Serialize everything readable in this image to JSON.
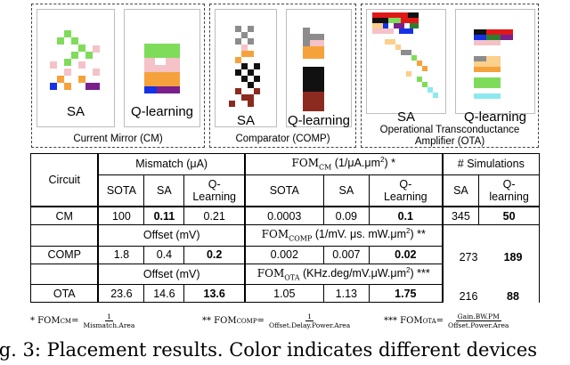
{
  "panels": [
    {
      "caption": "Current Mirror (CM)",
      "left_label": "SA",
      "right_label": "Q-learning"
    },
    {
      "caption": "Comparator (COMP)",
      "left_label": "SA",
      "right_label": "Q-learning"
    },
    {
      "caption_line1": "Operational Transconductance",
      "caption_line2": "Amplifier (OTA)",
      "left_label": "SA",
      "right_label": "Q-learning"
    }
  ],
  "table": {
    "header": {
      "circuit": "Circuit",
      "mismatch_group": "Mismatch (μA)",
      "fom_cm_group": "FOM",
      "fom_cm_sub": "CM",
      "fom_cm_units": " (1/μA.μm",
      "fom_cm_sup": "2",
      "fom_cm_tail": ") *",
      "sims_group": "# Simulations",
      "sota": "SOTA",
      "sa": "SA",
      "ql": "Q-Learning",
      "sota2": "SOTA",
      "sa2": "SA",
      "ql2": "Q-Learning",
      "sa3": "SA",
      "ql3": "Q-learning"
    },
    "cm_row": {
      "name": "CM",
      "v1": "100",
      "v2": "0.11",
      "v3": "0.21",
      "v4": "0.0003",
      "v5": "0.09",
      "v6": "0.1",
      "v7": "345",
      "v8": "50"
    },
    "comp_header": {
      "offset": "Offset (mV)",
      "fom": "FOM",
      "fom_sub": "COMP",
      "units": " (1/mV. μs. mW.μm",
      "sup": "2",
      "tail": ") **"
    },
    "comp_row": {
      "name": "COMP",
      "v1": "1.8",
      "v2": "0.4",
      "v3": "0.2",
      "v4": "0.002",
      "v5": "0.007",
      "v6": "0.02",
      "v7": "273",
      "v8": "189"
    },
    "ota_header": {
      "offset": "Offset (mV)",
      "fom": "FOM",
      "fom_sub": "OTA",
      "units": " (KHz.deg/mV.μW.μm",
      "sup": "2",
      "tail": ") ***"
    },
    "ota_row": {
      "name": "OTA",
      "v1": "23.6",
      "v2": "14.6",
      "v3": "13.6",
      "v4": "1.05",
      "v5": "1.13",
      "v6": "1.75",
      "v7": "216",
      "v8": "88"
    }
  },
  "footnotes": [
    {
      "mark": "* FOM",
      "sub": "CM",
      "eq": " =",
      "num": "1",
      "den": "Mismatch.Area"
    },
    {
      "mark": "** FOM",
      "sub": "COMP",
      "eq": " =",
      "num": "1",
      "den": "Offset.Delay.Power.Area"
    },
    {
      "mark": "*** FOM",
      "sub": "OTA",
      "eq": " =",
      "num": "Gain.BW.PM",
      "den": "Offset.Power.Area"
    }
  ],
  "caption": "ig. 3: Placement results. Color indicates different devices",
  "colors": {
    "green": "#7fdc5a",
    "pink": "#f4c2c7",
    "orange": "#f6a23c",
    "blue": "#1432e6",
    "purple": "#7a1f8c",
    "gray": "#8c8c8c",
    "black": "#111111",
    "darkred": "#8b2a1f",
    "red": "#e01818",
    "cyan": "#8ee8f0",
    "lightorange": "#fbcf8c",
    "darkgreen": "#2e7d32"
  }
}
